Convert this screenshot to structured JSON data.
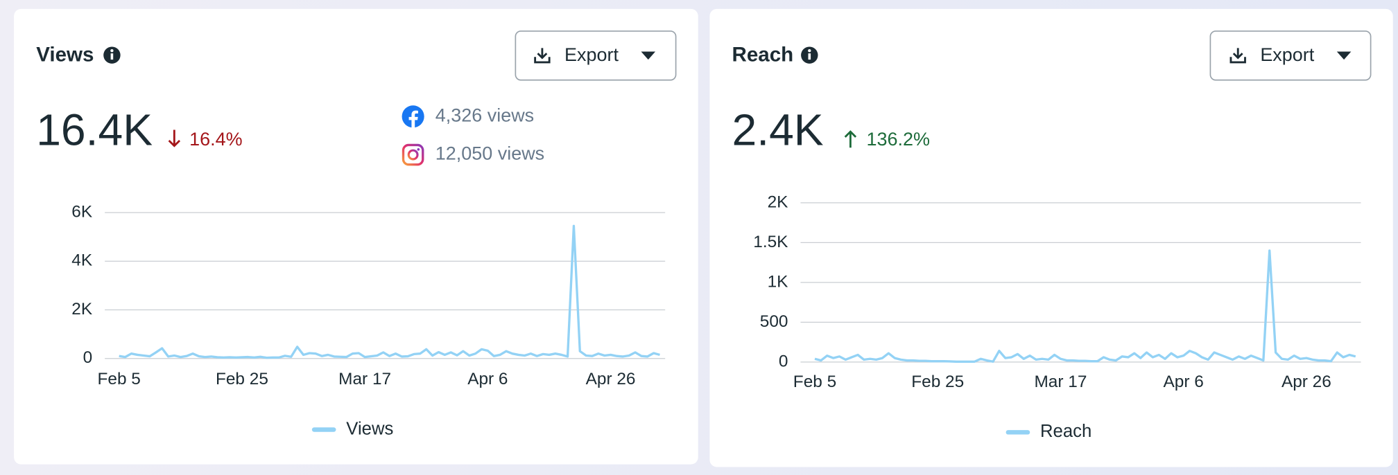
{
  "cards": [
    {
      "title": "Views",
      "button": "Export",
      "total": "16.4K",
      "change": "16.4%",
      "breakdown": [
        "4,326 views",
        "12,050 views"
      ]
    },
    {
      "title": "Reach",
      "button": "Export",
      "total": "2.4K",
      "change": "136.2%"
    }
  ],
  "chart_data": [
    {
      "type": "line",
      "categories": [
        "Feb 5",
        null,
        null,
        null,
        null,
        null,
        null,
        null,
        null,
        null,
        null,
        null,
        null,
        null,
        null,
        null,
        null,
        null,
        null,
        null,
        "Feb 25",
        null,
        null,
        null,
        null,
        null,
        null,
        null,
        null,
        null,
        null,
        null,
        null,
        null,
        null,
        null,
        null,
        null,
        null,
        null,
        "Mar 17",
        null,
        null,
        null,
        null,
        null,
        null,
        null,
        null,
        null,
        null,
        null,
        null,
        null,
        null,
        null,
        null,
        null,
        null,
        null,
        "Apr 6",
        null,
        null,
        null,
        null,
        null,
        null,
        null,
        null,
        null,
        null,
        null,
        null,
        null,
        null,
        null,
        null,
        null,
        null,
        null,
        "Apr 26",
        null,
        null,
        null,
        null,
        null,
        null,
        null,
        null
      ],
      "series": [
        {
          "name": "Views",
          "color": "#93d2f5",
          "values": [
            100,
            60,
            200,
            150,
            120,
            90,
            250,
            420,
            80,
            120,
            60,
            100,
            200,
            90,
            60,
            80,
            50,
            40,
            50,
            40,
            50,
            60,
            40,
            70,
            30,
            40,
            40,
            110,
            70,
            480,
            150,
            220,
            200,
            100,
            150,
            80,
            70,
            60,
            200,
            220,
            60,
            90,
            120,
            250,
            100,
            200,
            80,
            90,
            180,
            200,
            380,
            120,
            260,
            150,
            250,
            130,
            300,
            120,
            200,
            380,
            320,
            100,
            150,
            300,
            200,
            150,
            120,
            200,
            100,
            180,
            150,
            200,
            150,
            80,
            5450,
            300,
            120,
            100,
            200,
            120,
            150,
            100,
            80,
            120,
            250,
            100,
            80,
            220,
            150
          ]
        }
      ],
      "ylim": [
        0,
        6000
      ],
      "yticks": [
        0,
        {
          "value": 2000,
          "label": "2K"
        },
        {
          "value": 4000,
          "label": "4K"
        },
        {
          "value": 6000,
          "label": "6K"
        }
      ],
      "grid": true
    },
    {
      "type": "line",
      "categories": [
        "Feb 5",
        null,
        null,
        null,
        null,
        null,
        null,
        null,
        null,
        null,
        null,
        null,
        null,
        null,
        null,
        null,
        null,
        null,
        null,
        null,
        "Feb 25",
        null,
        null,
        null,
        null,
        null,
        null,
        null,
        null,
        null,
        null,
        null,
        null,
        null,
        null,
        null,
        null,
        null,
        null,
        null,
        "Mar 17",
        null,
        null,
        null,
        null,
        null,
        null,
        null,
        null,
        null,
        null,
        null,
        null,
        null,
        null,
        null,
        null,
        null,
        null,
        null,
        "Apr 6",
        null,
        null,
        null,
        null,
        null,
        null,
        null,
        null,
        null,
        null,
        null,
        null,
        null,
        null,
        null,
        null,
        null,
        null,
        null,
        "Apr 26",
        null,
        null,
        null,
        null,
        null,
        null,
        null,
        null
      ],
      "series": [
        {
          "name": "Reach",
          "color": "#93d2f5",
          "values": [
            40,
            20,
            80,
            50,
            70,
            30,
            60,
            90,
            30,
            40,
            30,
            50,
            110,
            50,
            30,
            20,
            20,
            15,
            15,
            10,
            10,
            10,
            8,
            5,
            5,
            5,
            5,
            40,
            20,
            5,
            140,
            50,
            60,
            100,
            40,
            80,
            30,
            40,
            30,
            90,
            40,
            20,
            20,
            15,
            15,
            10,
            10,
            60,
            30,
            20,
            70,
            60,
            110,
            50,
            120,
            60,
            90,
            40,
            110,
            60,
            80,
            140,
            110,
            60,
            30,
            120,
            90,
            60,
            30,
            70,
            40,
            80,
            50,
            20,
            1400,
            120,
            40,
            30,
            80,
            40,
            50,
            30,
            20,
            20,
            10,
            120,
            60,
            90,
            70
          ]
        }
      ],
      "ylim": [
        0,
        2000
      ],
      "yticks": [
        0,
        500,
        {
          "value": 1000,
          "label": "1K"
        },
        {
          "value": 1500,
          "label": "1.5K"
        },
        {
          "value": 2000,
          "label": "2K"
        }
      ],
      "grid": true
    }
  ]
}
